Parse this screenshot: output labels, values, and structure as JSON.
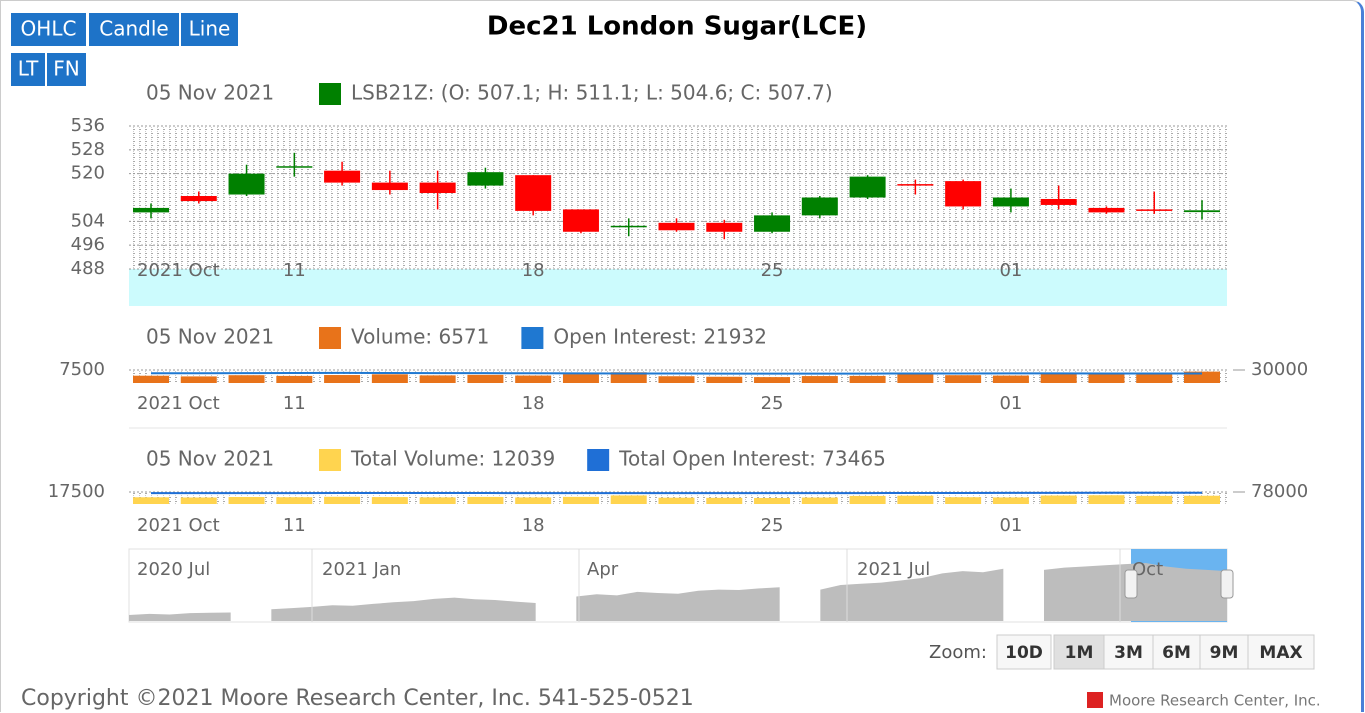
{
  "buttons": [
    "OHLC",
    "Candle",
    "Line",
    "LT",
    "FN"
  ],
  "title": "Dec21 London Sugar(LCE)",
  "chart_data": [
    {
      "type": "candlestick",
      "date_label": "05 Nov 2021",
      "legend": "LSB21Z: (O: 507.1; H: 511.1; L: 504.6; C: 507.7)",
      "up_color": "#008000",
      "down_color": "#ff0000",
      "categories": [
        "2021 Oct",
        null,
        null,
        "11",
        null,
        null,
        null,
        null,
        "18",
        null,
        null,
        null,
        null,
        "25",
        null,
        null,
        null,
        null,
        "01",
        null,
        null,
        null,
        null
      ],
      "open": [
        507,
        512.5,
        513,
        522,
        521,
        517,
        517,
        516,
        519.5,
        508,
        502,
        503.5,
        503.5,
        500.5,
        506,
        512,
        516.5,
        517.5,
        509,
        511.5,
        508.5,
        508,
        507.1
      ],
      "high": [
        510,
        514,
        523,
        527,
        524,
        521,
        521,
        522,
        519.5,
        508,
        505,
        505,
        504.5,
        507,
        512.5,
        519.5,
        518,
        518,
        515,
        516,
        509,
        514,
        511.1
      ],
      "low": [
        505,
        510,
        512.5,
        519,
        516,
        513,
        508,
        515,
        506,
        500,
        499,
        500.5,
        498,
        500,
        505,
        511.5,
        513,
        508,
        507,
        508,
        506.5,
        506.5,
        504.6
      ],
      "close": [
        508.5,
        510.8,
        520,
        522.5,
        517,
        514.5,
        513.5,
        520.5,
        507.5,
        500.5,
        502.5,
        501,
        500.5,
        506,
        512,
        519,
        516,
        509,
        512,
        509.5,
        507,
        507.5,
        507.7
      ],
      "ylim": [
        488,
        536
      ],
      "yticks": [
        488,
        496,
        504,
        520,
        528,
        536
      ],
      "grid": true
    },
    {
      "type": "bar-line",
      "date_label": "05 Nov 2021",
      "categories": [
        "2021 Oct",
        null,
        null,
        "11",
        null,
        null,
        null,
        null,
        "18",
        null,
        null,
        null,
        null,
        "25",
        null,
        null,
        null,
        null,
        "01",
        null,
        null,
        null,
        null
      ],
      "series": [
        {
          "name": "Volume: 6571",
          "color": "#e8731a",
          "values": [
            4200,
            3800,
            4500,
            4100,
            4600,
            5000,
            4400,
            4700,
            4300,
            5100,
            6200,
            3900,
            3600,
            3400,
            4000,
            4100,
            6000,
            4500,
            4300,
            5200,
            5800,
            5400,
            6571
          ]
        },
        {
          "name": "Open Interest: 21932",
          "color": "#1f78d1",
          "axis": "y2",
          "values": [
            22500,
            22600,
            22800,
            23200,
            23300,
            23100,
            22900,
            22700,
            22500,
            22300,
            22000,
            21800,
            21700,
            21500,
            21600,
            21700,
            21900,
            22000,
            22100,
            22200,
            22000,
            21900,
            21932
          ]
        }
      ],
      "ylim": [
        0,
        7500
      ],
      "yticks": [
        7500
      ],
      "y2lim": [
        0,
        30000
      ],
      "y2ticks": [
        30000
      ]
    },
    {
      "type": "bar-line",
      "date_label": "05 Nov 2021",
      "categories": [
        "2021 Oct",
        null,
        null,
        "11",
        null,
        null,
        null,
        null,
        "18",
        null,
        null,
        null,
        null,
        "25",
        null,
        null,
        null,
        null,
        "01",
        null,
        null,
        null,
        null
      ],
      "series": [
        {
          "name": "Total Volume: 12039",
          "color": "#ffd44f",
          "values": [
            9800,
            9500,
            10200,
            9900,
            10500,
            10100,
            9700,
            10300,
            9600,
            10400,
            12500,
            9200,
            9000,
            8800,
            9400,
            11800,
            12100,
            9900,
            9600,
            12400,
            12800,
            11900,
            12039
          ]
        },
        {
          "name": "Total Open Interest: 73465",
          "color": "#1f6fd6",
          "axis": "y2",
          "values": [
            70500,
            70600,
            70800,
            71000,
            71200,
            71300,
            71200,
            71100,
            71000,
            70900,
            70800,
            70700,
            70700,
            70600,
            70800,
            71000,
            71300,
            71600,
            72000,
            72500,
            73000,
            73300,
            73465
          ]
        }
      ],
      "ylim": [
        0,
        17500
      ],
      "yticks": [
        17500
      ],
      "y2lim": [
        0,
        78000
      ],
      "y2ticks": [
        78000
      ]
    }
  ],
  "navigator": {
    "type": "area",
    "color": "#bdbdbd",
    "labels": [
      "2020 Jul",
      "2021 Jan",
      "Apr",
      "2021 Jul",
      "Oct"
    ],
    "values": [
      320,
      325,
      322,
      328,
      330,
      331,
      null,
      345,
      350,
      355,
      362,
      360,
      368,
      375,
      380,
      390,
      395,
      388,
      385,
      378,
      372,
      null,
      400,
      410,
      405,
      420,
      415,
      412,
      425,
      430,
      428,
      435,
      440,
      null,
      430,
      450,
      455,
      460,
      470,
      480,
      500,
      510,
      505,
      520,
      null,
      515,
      525,
      530,
      535,
      540,
      545,
      530,
      520,
      515,
      510
    ]
  },
  "zoom": {
    "label": "Zoom:",
    "options": [
      "10D",
      "1M",
      "3M",
      "6M",
      "9M",
      "MAX"
    ],
    "selected": "1M"
  },
  "footer": {
    "copyright": "Copyright ©2021 Moore Research Center, Inc. 541-525-0521",
    "logo": "Moore Research Center, Inc."
  }
}
